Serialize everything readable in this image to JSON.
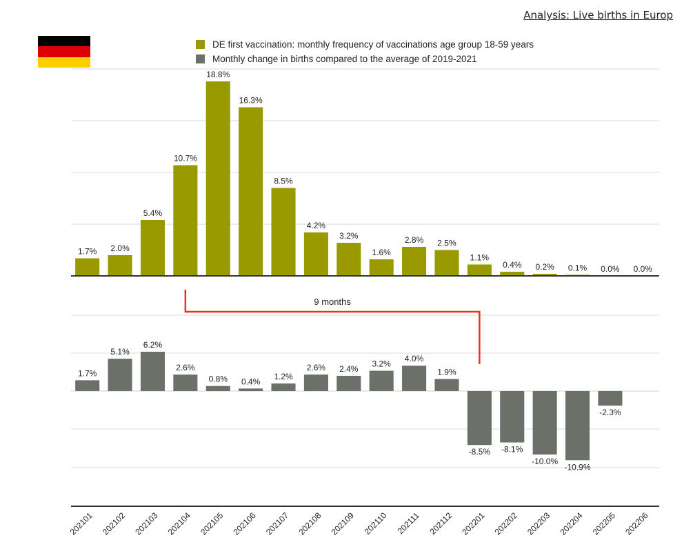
{
  "header": {
    "analysis_link": "Analysis: Live births in Europ"
  },
  "flag": {
    "name": "germany-flag",
    "colors": [
      "#000000",
      "#dd0000",
      "#ffce00"
    ]
  },
  "chart_data": {
    "type": "bar",
    "categories": [
      "202101",
      "202102",
      "202103",
      "202104",
      "202105",
      "202106",
      "202107",
      "202108",
      "202109",
      "202110",
      "202111",
      "202112",
      "202201",
      "202202",
      "202203",
      "202204",
      "202205",
      "202206"
    ],
    "series": [
      {
        "name": "DE first vaccination: monthly frequency of vaccinations age group 18-59 years",
        "color": "#999900",
        "values": [
          1.7,
          2.0,
          5.4,
          10.7,
          18.8,
          16.3,
          8.5,
          4.2,
          3.2,
          1.6,
          2.8,
          2.5,
          1.1,
          0.4,
          0.2,
          0.1,
          0.0,
          0.0
        ],
        "labels": [
          "1.7%",
          "2.0%",
          "5.4%",
          "10.7%",
          "18.8%",
          "16.3%",
          "8.5%",
          "4.2%",
          "3.2%",
          "1.6%",
          "2.8%",
          "2.5%",
          "1.1%",
          "0.4%",
          "0.2%",
          "0.1%",
          "0.0%",
          "0.0%"
        ]
      },
      {
        "name": "Monthly change in births compared to the average of 2019-2021",
        "color": "#6b7169",
        "values": [
          1.7,
          5.1,
          6.2,
          2.6,
          0.8,
          0.4,
          1.2,
          2.6,
          2.4,
          3.2,
          4.0,
          1.9,
          -8.5,
          -8.1,
          -10.0,
          -10.9,
          -2.3,
          null
        ],
        "labels": [
          "1.7%",
          "5.1%",
          "6.2%",
          "2.6%",
          "0.8%",
          "0.4%",
          "1.2%",
          "2.6%",
          "2.4%",
          "3.2%",
          "4.0%",
          "1.9%",
          "-8.5%",
          "-8.1%",
          "-10.0%",
          "-10.9%",
          "-2.3%",
          ""
        ]
      }
    ],
    "annotation": {
      "text": "9 months",
      "color": "#e8321e",
      "from_category": "202104",
      "to_category": "202201"
    },
    "grid": true
  }
}
